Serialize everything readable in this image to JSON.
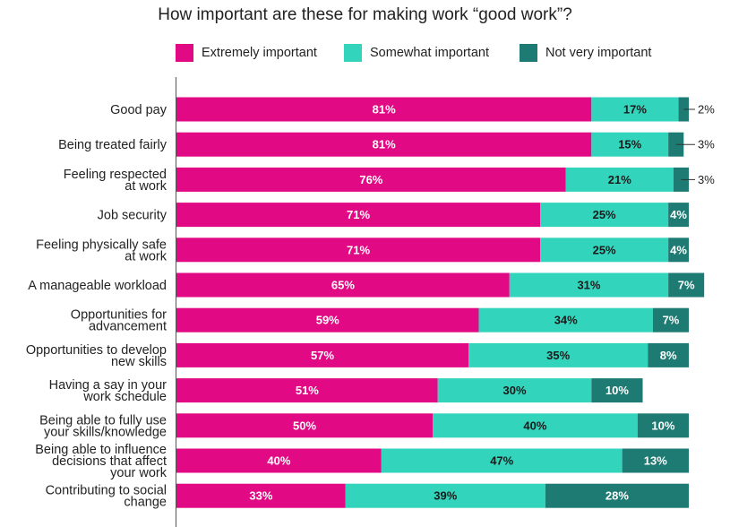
{
  "chart_data": {
    "type": "bar",
    "orientation": "horizontal",
    "stacked": true,
    "title": "How important are these for making work “good work”?",
    "xlim": [
      0,
      100
    ],
    "grid": false,
    "legend_position": "top",
    "categories": [
      [
        "Good pay"
      ],
      [
        "Being treated fairly"
      ],
      [
        "Feeling respected",
        "at work"
      ],
      [
        "Job security"
      ],
      [
        "Feeling physically safe",
        "at work"
      ],
      [
        "A manageable workload"
      ],
      [
        "Opportunities for",
        "advancement"
      ],
      [
        "Opportunities to develop",
        "new skills"
      ],
      [
        "Having a say in your",
        "work schedule"
      ],
      [
        "Being able to fully use",
        "your skills/knowledge"
      ],
      [
        "Being able to influence",
        "decisions that affect",
        "your work"
      ],
      [
        "Contributing to social",
        "change"
      ]
    ],
    "series": [
      {
        "name": "Extremely important",
        "color": "#e20a84",
        "label_color": "#ffffff",
        "values": [
          81,
          81,
          76,
          71,
          71,
          65,
          59,
          57,
          51,
          50,
          40,
          33
        ]
      },
      {
        "name": "Somewhat important",
        "color": "#33d4bc",
        "label_color": "#1a1a1a",
        "values": [
          17,
          15,
          21,
          25,
          25,
          31,
          34,
          35,
          30,
          40,
          47,
          39
        ]
      },
      {
        "name": "Not very important",
        "color": "#1e7b73",
        "label_color": "#ffffff",
        "values": [
          2,
          3,
          3,
          4,
          4,
          7,
          7,
          8,
          10,
          10,
          13,
          28
        ]
      }
    ],
    "value_suffix": "%"
  }
}
